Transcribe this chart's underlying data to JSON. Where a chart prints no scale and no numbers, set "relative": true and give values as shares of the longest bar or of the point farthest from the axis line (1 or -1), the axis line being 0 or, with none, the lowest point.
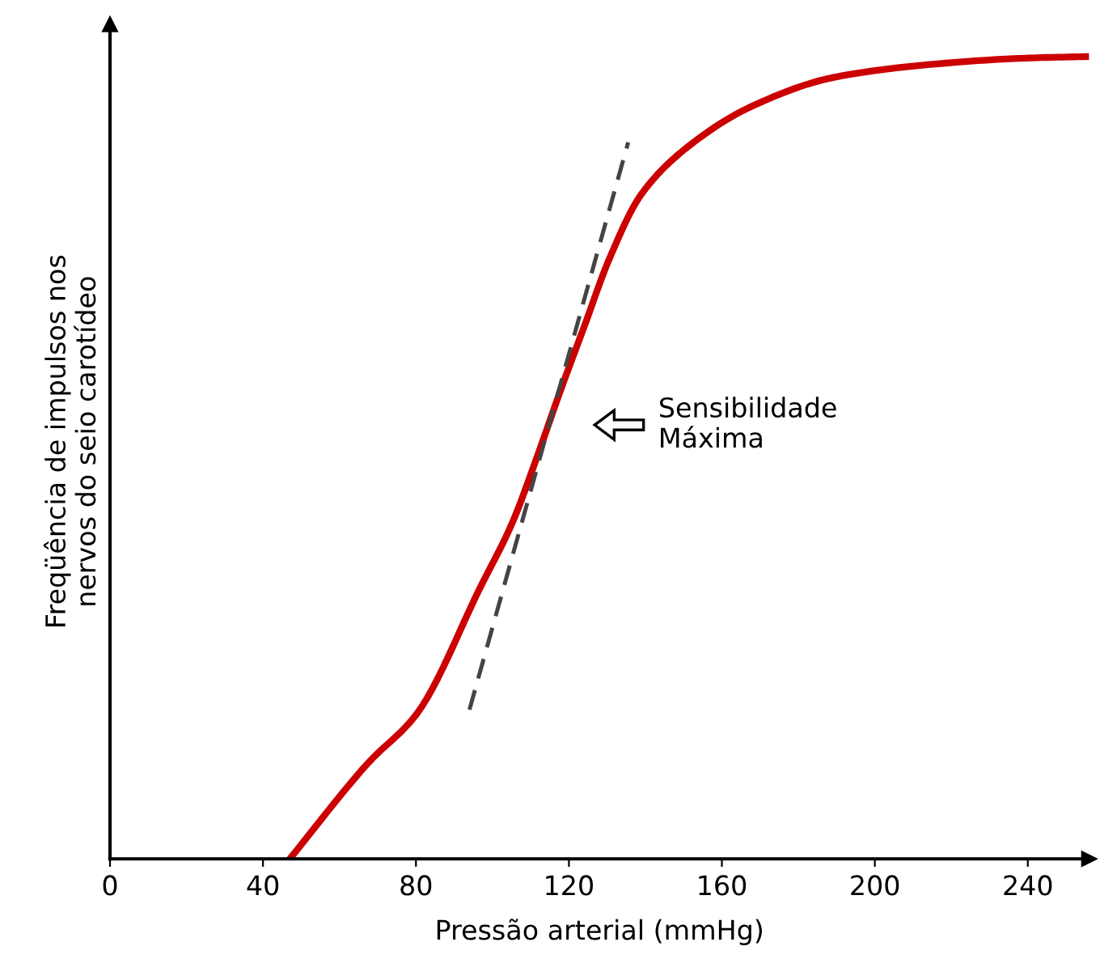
{
  "chart_data": {
    "type": "line",
    "relative": true,
    "xlabel": "Pressão arterial (mmHg)",
    "ylabel": "Freqüência de impulsos nos\nnervos do seio carotídeo",
    "xlim": [
      0,
      256
    ],
    "xticks": [
      0,
      40,
      80,
      120,
      160,
      200,
      240
    ],
    "grid": false,
    "series": [
      {
        "color": "#cc0000",
        "x": [
          47,
          67.6,
          80.1,
          97,
          105.3,
          111.6,
          117.9,
          124.2,
          130.5,
          138.9,
          151.5,
          168.3,
          189.3,
          214.4,
          239.6,
          256
        ],
        "values": [
          0,
          0.12,
          0.18,
          0.34,
          0.42,
          0.5,
          0.585,
          0.666,
          0.747,
          0.828,
          0.889,
          0.939,
          0.974,
          0.99,
          0.998,
          1
        ]
      },
      {
        "color": "#444444",
        "line_style": "dashed",
        "x": [
          94,
          135.5
        ],
        "values": [
          0.186,
          0.893
        ]
      }
    ],
    "annotations": [
      "Sensibilidade\nMáxima"
    ]
  }
}
